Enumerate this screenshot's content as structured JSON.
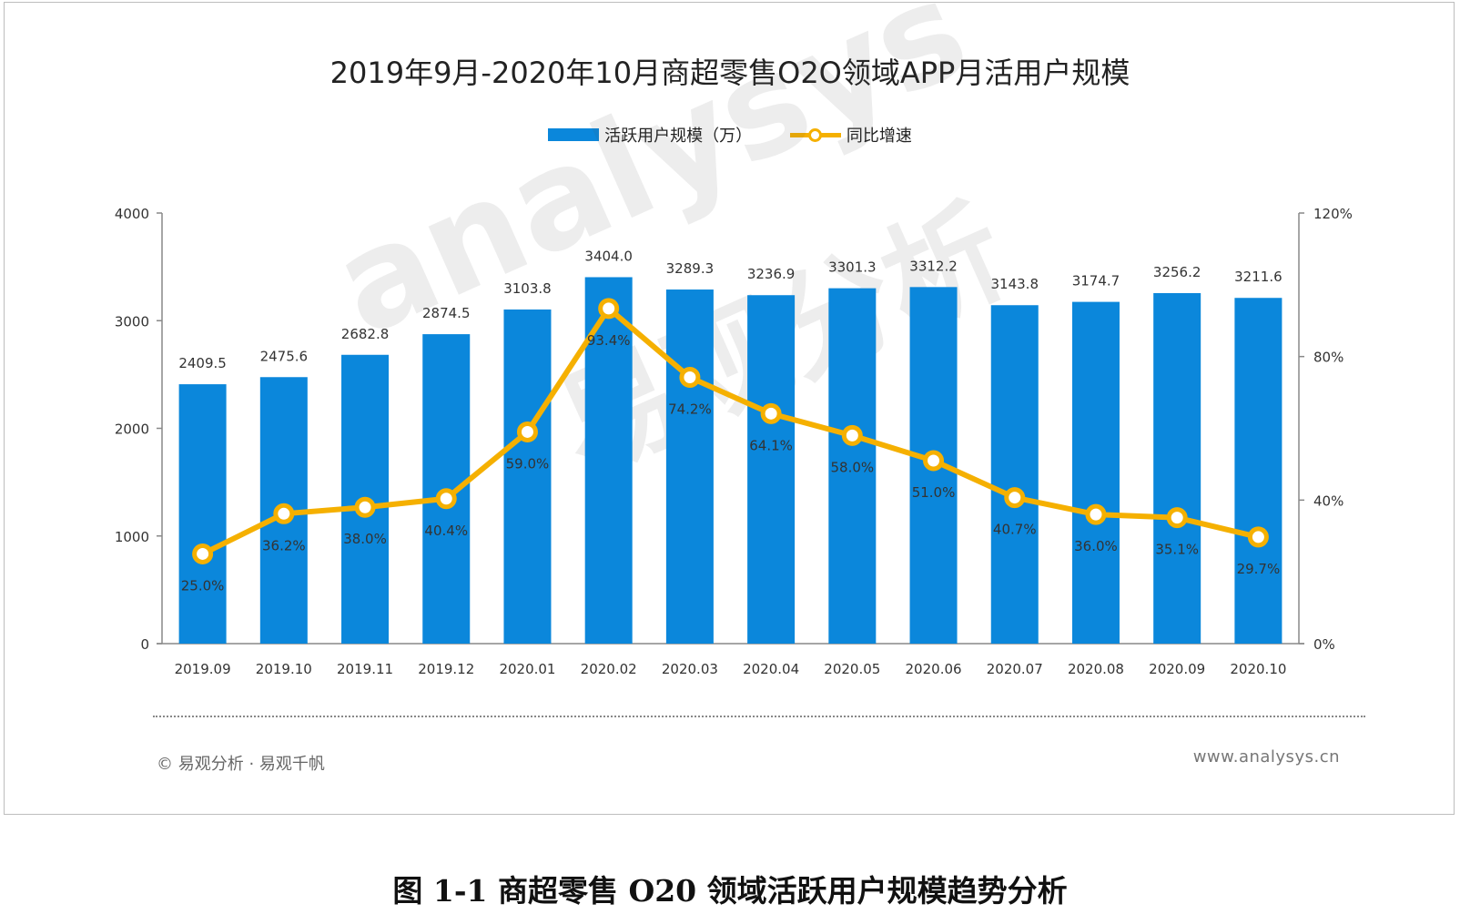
{
  "title": "2019年9月-2020年10月商超零售O2O领域APP月活用户规模",
  "legend": {
    "bar": "活跃用户规模（万）",
    "line": "同比增速"
  },
  "watermark": "analysys 易观分析",
  "footer": {
    "left": "© 易观分析 · 易观千帆",
    "right": "www.analysys.cn"
  },
  "caption": "图 1-1 商超零售 O20 领域活跃用户规模趋势分析",
  "colors": {
    "bar": "#0b87db",
    "line": "#f5b000",
    "axis": "#888888"
  },
  "chart_data": {
    "type": "bar",
    "categories": [
      "2019.09",
      "2019.10",
      "2019.11",
      "2019.12",
      "2020.01",
      "2020.02",
      "2020.03",
      "2020.04",
      "2020.05",
      "2020.06",
      "2020.07",
      "2020.08",
      "2020.09",
      "2020.10"
    ],
    "series": [
      {
        "name": "活跃用户规模（万）",
        "type": "bar",
        "axis": "left",
        "values": [
          2409.5,
          2475.6,
          2682.8,
          2874.5,
          3103.8,
          3404.0,
          3289.3,
          3236.9,
          3301.3,
          3312.2,
          3143.8,
          3174.7,
          3256.2,
          3211.6
        ],
        "labels": [
          "2409.5",
          "2475.6",
          "2682.8",
          "2874.5",
          "3103.8",
          "3404.0",
          "3289.3",
          "3236.9",
          "3301.3",
          "3312.2",
          "3143.8",
          "3174.7",
          "3256.2",
          "3211.6"
        ]
      },
      {
        "name": "同比增速",
        "type": "line",
        "axis": "right",
        "values": [
          25.0,
          36.2,
          38.0,
          40.4,
          59.0,
          93.4,
          74.2,
          64.1,
          58.0,
          51.0,
          40.7,
          36.0,
          35.1,
          29.7
        ],
        "labels": [
          "25.0%",
          "36.2%",
          "38.0%",
          "40.4%",
          "59.0%",
          "93.4%",
          "74.2%",
          "64.1%",
          "58.0%",
          "51.0%",
          "40.7%",
          "36.0%",
          "35.1%",
          "29.7%"
        ]
      }
    ],
    "y_left": {
      "range": [
        0,
        4000
      ],
      "ticks": [
        "0",
        "1000",
        "2000",
        "3000",
        "4000"
      ]
    },
    "y_right": {
      "range": [
        0,
        120
      ],
      "ticks": [
        "0%",
        "40%",
        "80%",
        "120%"
      ]
    },
    "grid": false,
    "legend_position": "top-center"
  }
}
